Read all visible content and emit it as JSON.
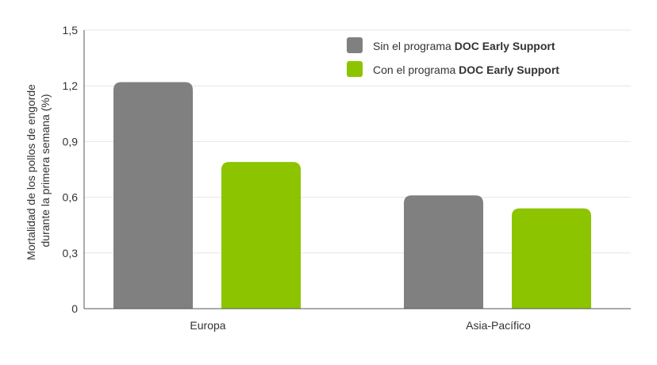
{
  "chart_data": {
    "type": "bar",
    "title": "",
    "xlabel": "",
    "ylabel_lines": [
      "Mortalidad de los pollos de engorde",
      "durante la primera semana (%)"
    ],
    "categories": [
      "Europa",
      "Asia-Pacífico"
    ],
    "series": [
      {
        "name": "Sin el programa DOC Early Support",
        "name_prefix": "Sin el programa ",
        "name_bold": "DOC Early Support",
        "color": "#808080",
        "values": [
          1.22,
          0.61
        ]
      },
      {
        "name": "Con el programa DOC Early Support",
        "name_prefix": "Con el programa ",
        "name_bold": "DOC Early Support",
        "color": "#8dc400",
        "values": [
          0.79,
          0.54
        ]
      }
    ],
    "ylim": [
      0,
      1.5
    ],
    "yticks": [
      0,
      0.3,
      0.6,
      0.9,
      1.2,
      1.5
    ],
    "ytick_labels": [
      "0",
      "0,3",
      "0,6",
      "0,9",
      "1,2",
      "1,5"
    ],
    "grid": true,
    "legend_position": "top-right"
  }
}
